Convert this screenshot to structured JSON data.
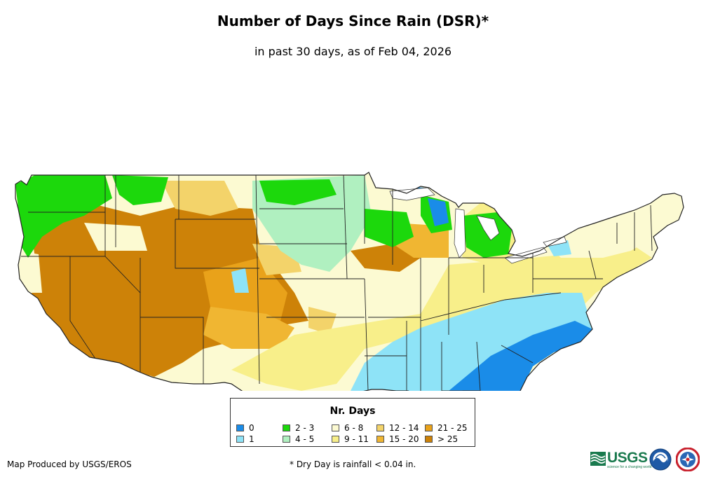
{
  "header": {
    "title": "Number of Days Since Rain (DSR)*",
    "subtitle": "in past 30 days, as of Feb 04, 2026"
  },
  "legend": {
    "title": "Nr. Days",
    "items": [
      {
        "label": "0",
        "color": "#1a8ce8"
      },
      {
        "label": "1",
        "color": "#8ee3f7"
      },
      {
        "label": "2 - 3",
        "color": "#1cd80c"
      },
      {
        "label": "4 - 5",
        "color": "#b0f0c0"
      },
      {
        "label": "6 - 8",
        "color": "#fcfad2"
      },
      {
        "label": "9 - 11",
        "color": "#f8ef8a"
      },
      {
        "label": "12 - 14",
        "color": "#f3d36a"
      },
      {
        "label": "15 - 20",
        "color": "#f0b632"
      },
      {
        "label": "21 - 25",
        "color": "#e9a21a"
      },
      {
        "label": "> 25",
        "color": "#cd8208"
      }
    ]
  },
  "footer": {
    "credit": "Map Produced by USGS/EROS",
    "footnote": "* Dry Day is rainfall < 0.04 in."
  },
  "logos": {
    "usgs": {
      "text": "USGS",
      "tagline": "science for a changing world",
      "icon": "usgs-wave-icon",
      "color": "#1a7a4e"
    },
    "noaa": {
      "icon": "noaa-seal-icon"
    },
    "nws": {
      "icon": "nws-seal-icon"
    }
  }
}
